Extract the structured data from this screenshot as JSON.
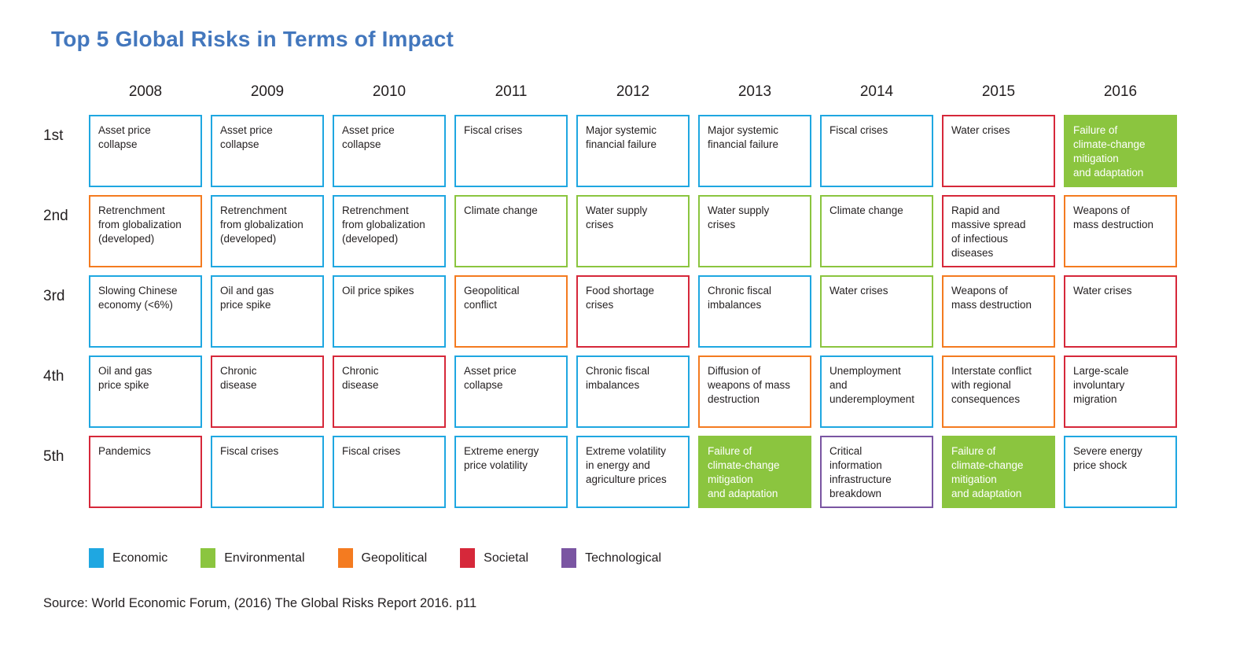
{
  "title": "Top 5 Global Risks in Terms of Impact",
  "source_note": "Source: World Economic Forum, (2016) The Global Risks Report 2016. p11",
  "colors": {
    "title_blue": "#4377BD",
    "economic": "#1FA7E1",
    "environmental": "#8BC53F",
    "geopolitical": "#F47B20",
    "societal": "#D6283A",
    "technological": "#7A55A2",
    "filled_cell_background": "#8BC53F",
    "filled_cell_text": "#FFFFFF"
  },
  "legend": [
    {
      "label": "Economic",
      "category": "economic",
      "color": "#1FA7E1"
    },
    {
      "label": "Environmental",
      "category": "environmental",
      "color": "#8BC53F"
    },
    {
      "label": "Geopolitical",
      "category": "geopolitical",
      "color": "#F47B20"
    },
    {
      "label": "Societal",
      "category": "societal",
      "color": "#D6283A"
    },
    {
      "label": "Technological",
      "category": "technological",
      "color": "#7A55A2"
    }
  ],
  "chart_data": {
    "type": "table",
    "title": "Top 5 Global Risks in Terms of Impact",
    "rank_labels": [
      "1st",
      "2nd",
      "3rd",
      "4th",
      "5th"
    ],
    "years": [
      "2008",
      "2009",
      "2010",
      "2011",
      "2012",
      "2013",
      "2014",
      "2015",
      "2016"
    ],
    "legend_position": "bottom",
    "columns": [
      {
        "year": "2008",
        "cells": [
          {
            "text": "Asset price\ncollapse",
            "category": "economic",
            "filled": false
          },
          {
            "text": "Retrenchment\nfrom globalization\n(developed)",
            "category": "geopolitical",
            "filled": false
          },
          {
            "text": "Slowing Chinese\neconomy (<6%)",
            "category": "economic",
            "filled": false
          },
          {
            "text": "Oil and gas\nprice spike",
            "category": "economic",
            "filled": false
          },
          {
            "text": "Pandemics",
            "category": "societal",
            "filled": false
          }
        ]
      },
      {
        "year": "2009",
        "cells": [
          {
            "text": "Asset price\ncollapse",
            "category": "economic",
            "filled": false
          },
          {
            "text": "Retrenchment\nfrom globalization\n(developed)",
            "category": "economic",
            "filled": false
          },
          {
            "text": "Oil and gas\nprice spike",
            "category": "economic",
            "filled": false
          },
          {
            "text": "Chronic\ndisease",
            "category": "societal",
            "filled": false
          },
          {
            "text": "Fiscal crises",
            "category": "economic",
            "filled": false
          }
        ]
      },
      {
        "year": "2010",
        "cells": [
          {
            "text": "Asset price\ncollapse",
            "category": "economic",
            "filled": false
          },
          {
            "text": "Retrenchment\nfrom globalization\n(developed)",
            "category": "economic",
            "filled": false
          },
          {
            "text": "Oil price spikes",
            "category": "economic",
            "filled": false
          },
          {
            "text": "Chronic\ndisease",
            "category": "societal",
            "filled": false
          },
          {
            "text": "Fiscal crises",
            "category": "economic",
            "filled": false
          }
        ]
      },
      {
        "year": "2011",
        "cells": [
          {
            "text": "Fiscal crises",
            "category": "economic",
            "filled": false
          },
          {
            "text": "Climate change",
            "category": "environmental",
            "filled": false
          },
          {
            "text": "Geopolitical\nconflict",
            "category": "geopolitical",
            "filled": false
          },
          {
            "text": "Asset price\ncollapse",
            "category": "economic",
            "filled": false
          },
          {
            "text": "Extreme energy\nprice volatility",
            "category": "economic",
            "filled": false
          }
        ]
      },
      {
        "year": "2012",
        "cells": [
          {
            "text": "Major systemic\nfinancial failure",
            "category": "economic",
            "filled": false
          },
          {
            "text": "Water supply\ncrises",
            "category": "environmental",
            "filled": false
          },
          {
            "text": "Food shortage\ncrises",
            "category": "societal",
            "filled": false
          },
          {
            "text": "Chronic fiscal\nimbalances",
            "category": "economic",
            "filled": false
          },
          {
            "text": "Extreme volatility\nin energy and\nagriculture prices",
            "category": "economic",
            "filled": false
          }
        ]
      },
      {
        "year": "2013",
        "cells": [
          {
            "text": "Major systemic\nfinancial failure",
            "category": "economic",
            "filled": false
          },
          {
            "text": "Water supply\ncrises",
            "category": "environmental",
            "filled": false
          },
          {
            "text": "Chronic fiscal\nimbalances",
            "category": "economic",
            "filled": false
          },
          {
            "text": "Diffusion of\nweapons of mass\ndestruction",
            "category": "geopolitical",
            "filled": false
          },
          {
            "text": "Failure of\nclimate-change\nmitigation\nand adaptation",
            "category": "environmental",
            "filled": true
          }
        ]
      },
      {
        "year": "2014",
        "cells": [
          {
            "text": "Fiscal crises",
            "category": "economic",
            "filled": false
          },
          {
            "text": "Climate change",
            "category": "environmental",
            "filled": false
          },
          {
            "text": "Water crises",
            "category": "environmental",
            "filled": false
          },
          {
            "text": "Unemployment\nand\nunderemployment",
            "category": "economic",
            "filled": false
          },
          {
            "text": "Critical\ninformation\ninfrastructure\nbreakdown",
            "category": "technological",
            "filled": false
          }
        ]
      },
      {
        "year": "2015",
        "cells": [
          {
            "text": "Water crises",
            "category": "societal",
            "filled": false
          },
          {
            "text": "Rapid and\nmassive spread\nof infectious\ndiseases",
            "category": "societal",
            "filled": false
          },
          {
            "text": "Weapons of\nmass destruction",
            "category": "geopolitical",
            "filled": false
          },
          {
            "text": "Interstate conflict\nwith regional\nconsequences",
            "category": "geopolitical",
            "filled": false
          },
          {
            "text": "Failure of\nclimate-change\nmitigation\nand adaptation",
            "category": "environmental",
            "filled": true
          }
        ]
      },
      {
        "year": "2016",
        "cells": [
          {
            "text": "Failure of\nclimate-change\nmitigation\nand adaptation",
            "category": "environmental",
            "filled": true
          },
          {
            "text": "Weapons of\nmass destruction",
            "category": "geopolitical",
            "filled": false
          },
          {
            "text": "Water crises",
            "category": "societal",
            "filled": false
          },
          {
            "text": "Large-scale\ninvoluntary\nmigration",
            "category": "societal",
            "filled": false
          },
          {
            "text": "Severe energy\nprice shock",
            "category": "economic",
            "filled": false
          }
        ]
      }
    ]
  }
}
